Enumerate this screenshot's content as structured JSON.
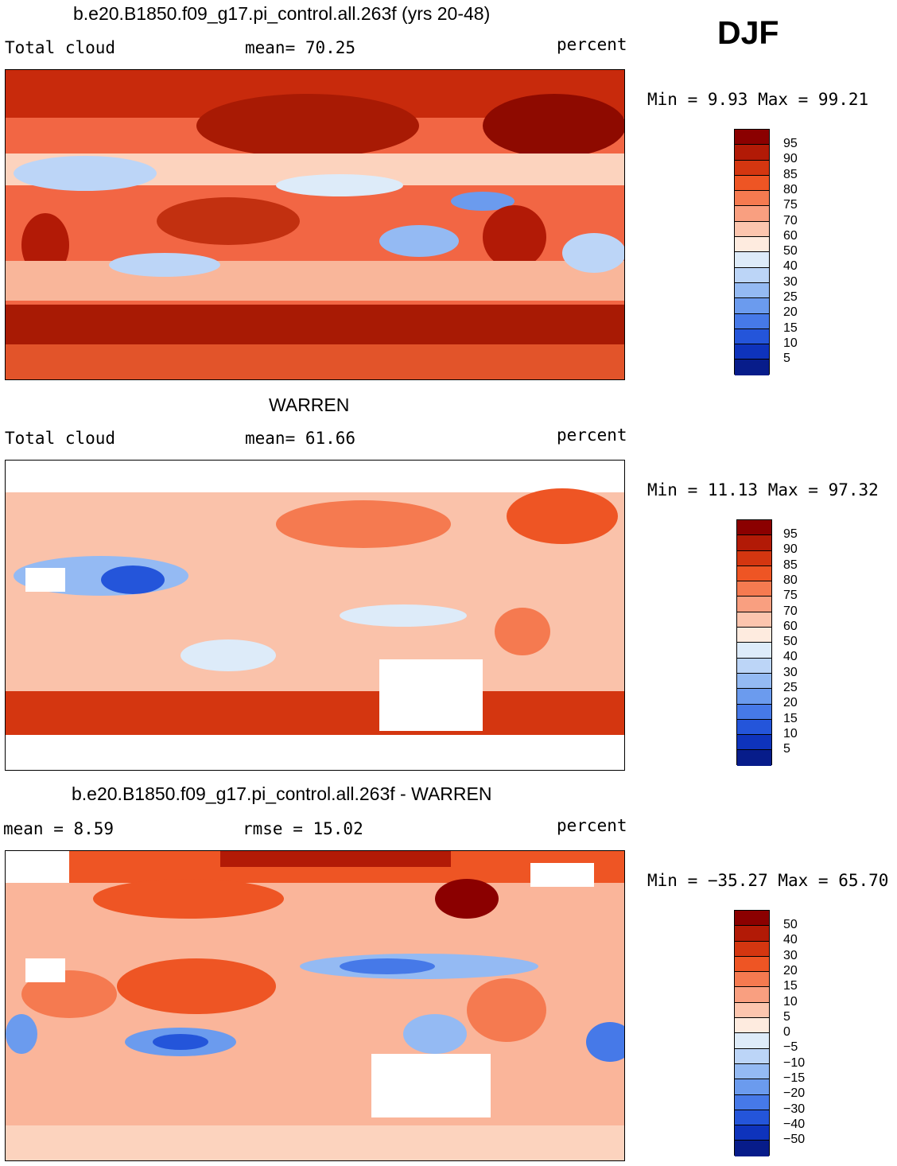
{
  "season": "DJF",
  "panels": [
    {
      "id": "model",
      "title": "b.e20.B1850.f09_g17.pi_control.all.263f (yrs 20-48)",
      "left_label": "Total cloud",
      "center_label": "mean=  70.25",
      "right_label": "percent",
      "minmax": "Min =   9.93 Max =  99.21",
      "colorbar": {
        "colors": [
          "#8B0000",
          "#B21A06",
          "#D43610",
          "#EE5524",
          "#F57A50",
          "#F99F80",
          "#FCC5AE",
          "#FEEBDF",
          "#DDEBF9",
          "#BCD5F7",
          "#94BAF3",
          "#6B9BEE",
          "#4679E8",
          "#2455DA",
          "#0E33BC",
          "#071C8A"
        ],
        "labels": [
          "95",
          "90",
          "85",
          "80",
          "75",
          "70",
          "60",
          "50",
          "40",
          "30",
          "25",
          "20",
          "15",
          "10",
          "5"
        ]
      }
    },
    {
      "id": "obs",
      "title": "WARREN",
      "left_label": "Total cloud",
      "center_label": "mean=  61.66",
      "right_label": "percent",
      "minmax": "Min =  11.13 Max =  97.32",
      "colorbar": {
        "colors": [
          "#8B0000",
          "#B21A06",
          "#D43610",
          "#EE5524",
          "#F57A50",
          "#F99F80",
          "#FCC5AE",
          "#FEEBDF",
          "#DDEBF9",
          "#BCD5F7",
          "#94BAF3",
          "#6B9BEE",
          "#4679E8",
          "#2455DA",
          "#0E33BC",
          "#071C8A"
        ],
        "labels": [
          "95",
          "90",
          "85",
          "80",
          "75",
          "70",
          "60",
          "50",
          "40",
          "30",
          "25",
          "20",
          "15",
          "10",
          "5"
        ]
      }
    },
    {
      "id": "diff",
      "title": "b.e20.B1850.f09_g17.pi_control.all.263f - WARREN",
      "left_label": "mean =   8.59",
      "center_label": "rmse =  15.02",
      "right_label": "percent",
      "minmax": "Min = −35.27 Max =  65.70",
      "colorbar": {
        "colors": [
          "#8B0000",
          "#B21A06",
          "#D43610",
          "#EE5524",
          "#F57A50",
          "#F99F80",
          "#FCC5AE",
          "#FEEBDF",
          "#DDEBF9",
          "#BCD5F7",
          "#94BAF3",
          "#6B9BEE",
          "#4679E8",
          "#2455DA",
          "#0E33BC",
          "#071C8A"
        ],
        "labels": [
          "50",
          "40",
          "30",
          "20",
          "15",
          "10",
          "5",
          "0",
          "−5",
          "−10",
          "−15",
          "−20",
          "−30",
          "−40",
          "−50"
        ]
      }
    }
  ]
}
